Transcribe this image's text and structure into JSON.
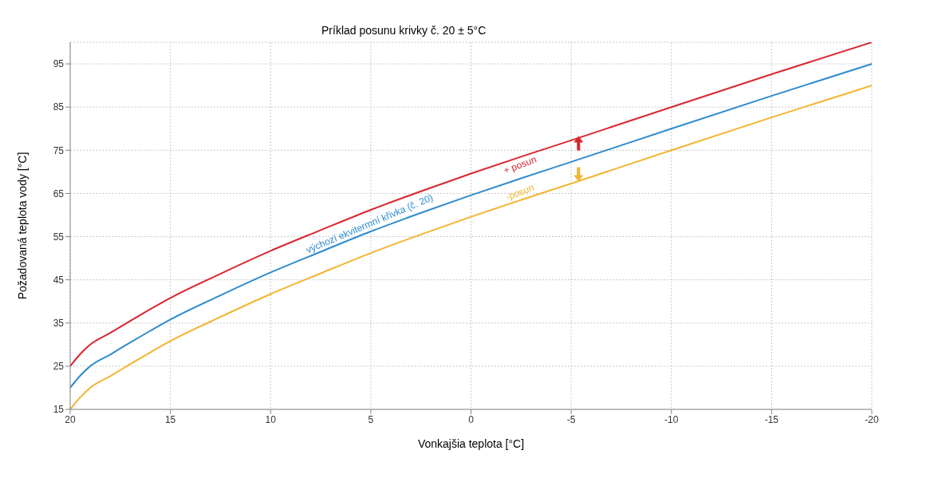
{
  "chart_data": {
    "type": "line",
    "title": "Príklad posunu krivky č. 20 ± 5°C",
    "xlabel": "Vonkajšia teplota [°C]",
    "ylabel": "Požadovaná teplota vody [°C]",
    "x": [
      20,
      19.5,
      19,
      18,
      17,
      16,
      15,
      12.5,
      10,
      7.5,
      5,
      2.5,
      0,
      -2.5,
      -5,
      -10,
      -15,
      -20
    ],
    "series": [
      {
        "name": "+ posun",
        "color": "#d9262e",
        "values": [
          25,
          27.8,
          30,
          32.7,
          35.5,
          38.2,
          40.8,
          46.4,
          51.7,
          56.5,
          61.2,
          65.5,
          69.6,
          73.5,
          77.3,
          85,
          92.6,
          100
        ]
      },
      {
        "name": "výchozí ekvitermní křivka (č. 20)",
        "color": "#2e8bcf",
        "values": [
          20,
          22.8,
          25,
          27.7,
          30.5,
          33.2,
          35.8,
          41.4,
          46.7,
          51.5,
          56.2,
          60.5,
          64.6,
          68.5,
          72.3,
          80,
          87.6,
          95
        ]
      },
      {
        "name": "-posun",
        "color": "#f2b530",
        "values": [
          15,
          17.8,
          20,
          22.7,
          25.5,
          28.2,
          30.8,
          36.4,
          41.7,
          46.5,
          51.2,
          55.5,
          59.6,
          63.5,
          67.3,
          75,
          82.6,
          90
        ]
      }
    ],
    "xlim": [
      20,
      -20
    ],
    "xticks": [
      20,
      15,
      10,
      5,
      0,
      -5,
      -10,
      -15,
      -20
    ],
    "ylim": [
      15,
      100
    ],
    "yticks": [
      15,
      25,
      35,
      45,
      55,
      65,
      75,
      85,
      95
    ],
    "grid": true,
    "legend": false,
    "marker": "none",
    "line_style": "solid"
  }
}
